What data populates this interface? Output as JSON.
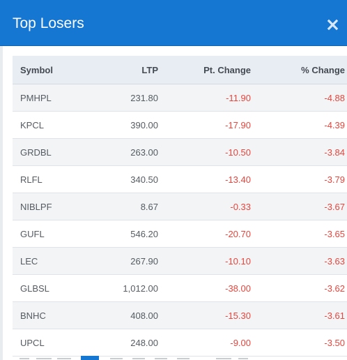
{
  "modal": {
    "title": "Top Losers",
    "close_icon": "close-icon"
  },
  "colors": {
    "header_bg": "#1577d2",
    "negative": "#e8453c",
    "table_header_bg": "#e8edf3",
    "row_alt_bg": "#f2f4f6"
  },
  "table": {
    "headers": {
      "symbol": "Symbol",
      "ltp": "LTP",
      "pt_change": "Pt. Change",
      "pct_change": "% Change"
    },
    "rows": [
      {
        "symbol": "PMHPL",
        "ltp": "231.80",
        "pt_change": "-11.90",
        "pct_change": "-4.88"
      },
      {
        "symbol": "KPCL",
        "ltp": "390.00",
        "pt_change": "-17.90",
        "pct_change": "-4.39"
      },
      {
        "symbol": "GRDBL",
        "ltp": "263.00",
        "pt_change": "-10.50",
        "pct_change": "-3.84"
      },
      {
        "symbol": "RLFL",
        "ltp": "340.50",
        "pt_change": "-13.40",
        "pct_change": "-3.79"
      },
      {
        "symbol": "NIBLPF",
        "ltp": "8.67",
        "pt_change": "-0.33",
        "pct_change": "-3.67"
      },
      {
        "symbol": "GUFL",
        "ltp": "546.20",
        "pt_change": "-20.70",
        "pct_change": "-3.65"
      },
      {
        "symbol": "LEC",
        "ltp": "267.90",
        "pt_change": "-10.10",
        "pct_change": "-3.63"
      },
      {
        "symbol": "GLBSL",
        "ltp": "1,012.00",
        "pt_change": "-38.00",
        "pct_change": "-3.62"
      },
      {
        "symbol": "BNHC",
        "ltp": "408.00",
        "pt_change": "-15.30",
        "pct_change": "-3.61"
      },
      {
        "symbol": "UPCL",
        "ltp": "248.00",
        "pt_change": "-9.00",
        "pct_change": "-3.50"
      }
    ]
  }
}
